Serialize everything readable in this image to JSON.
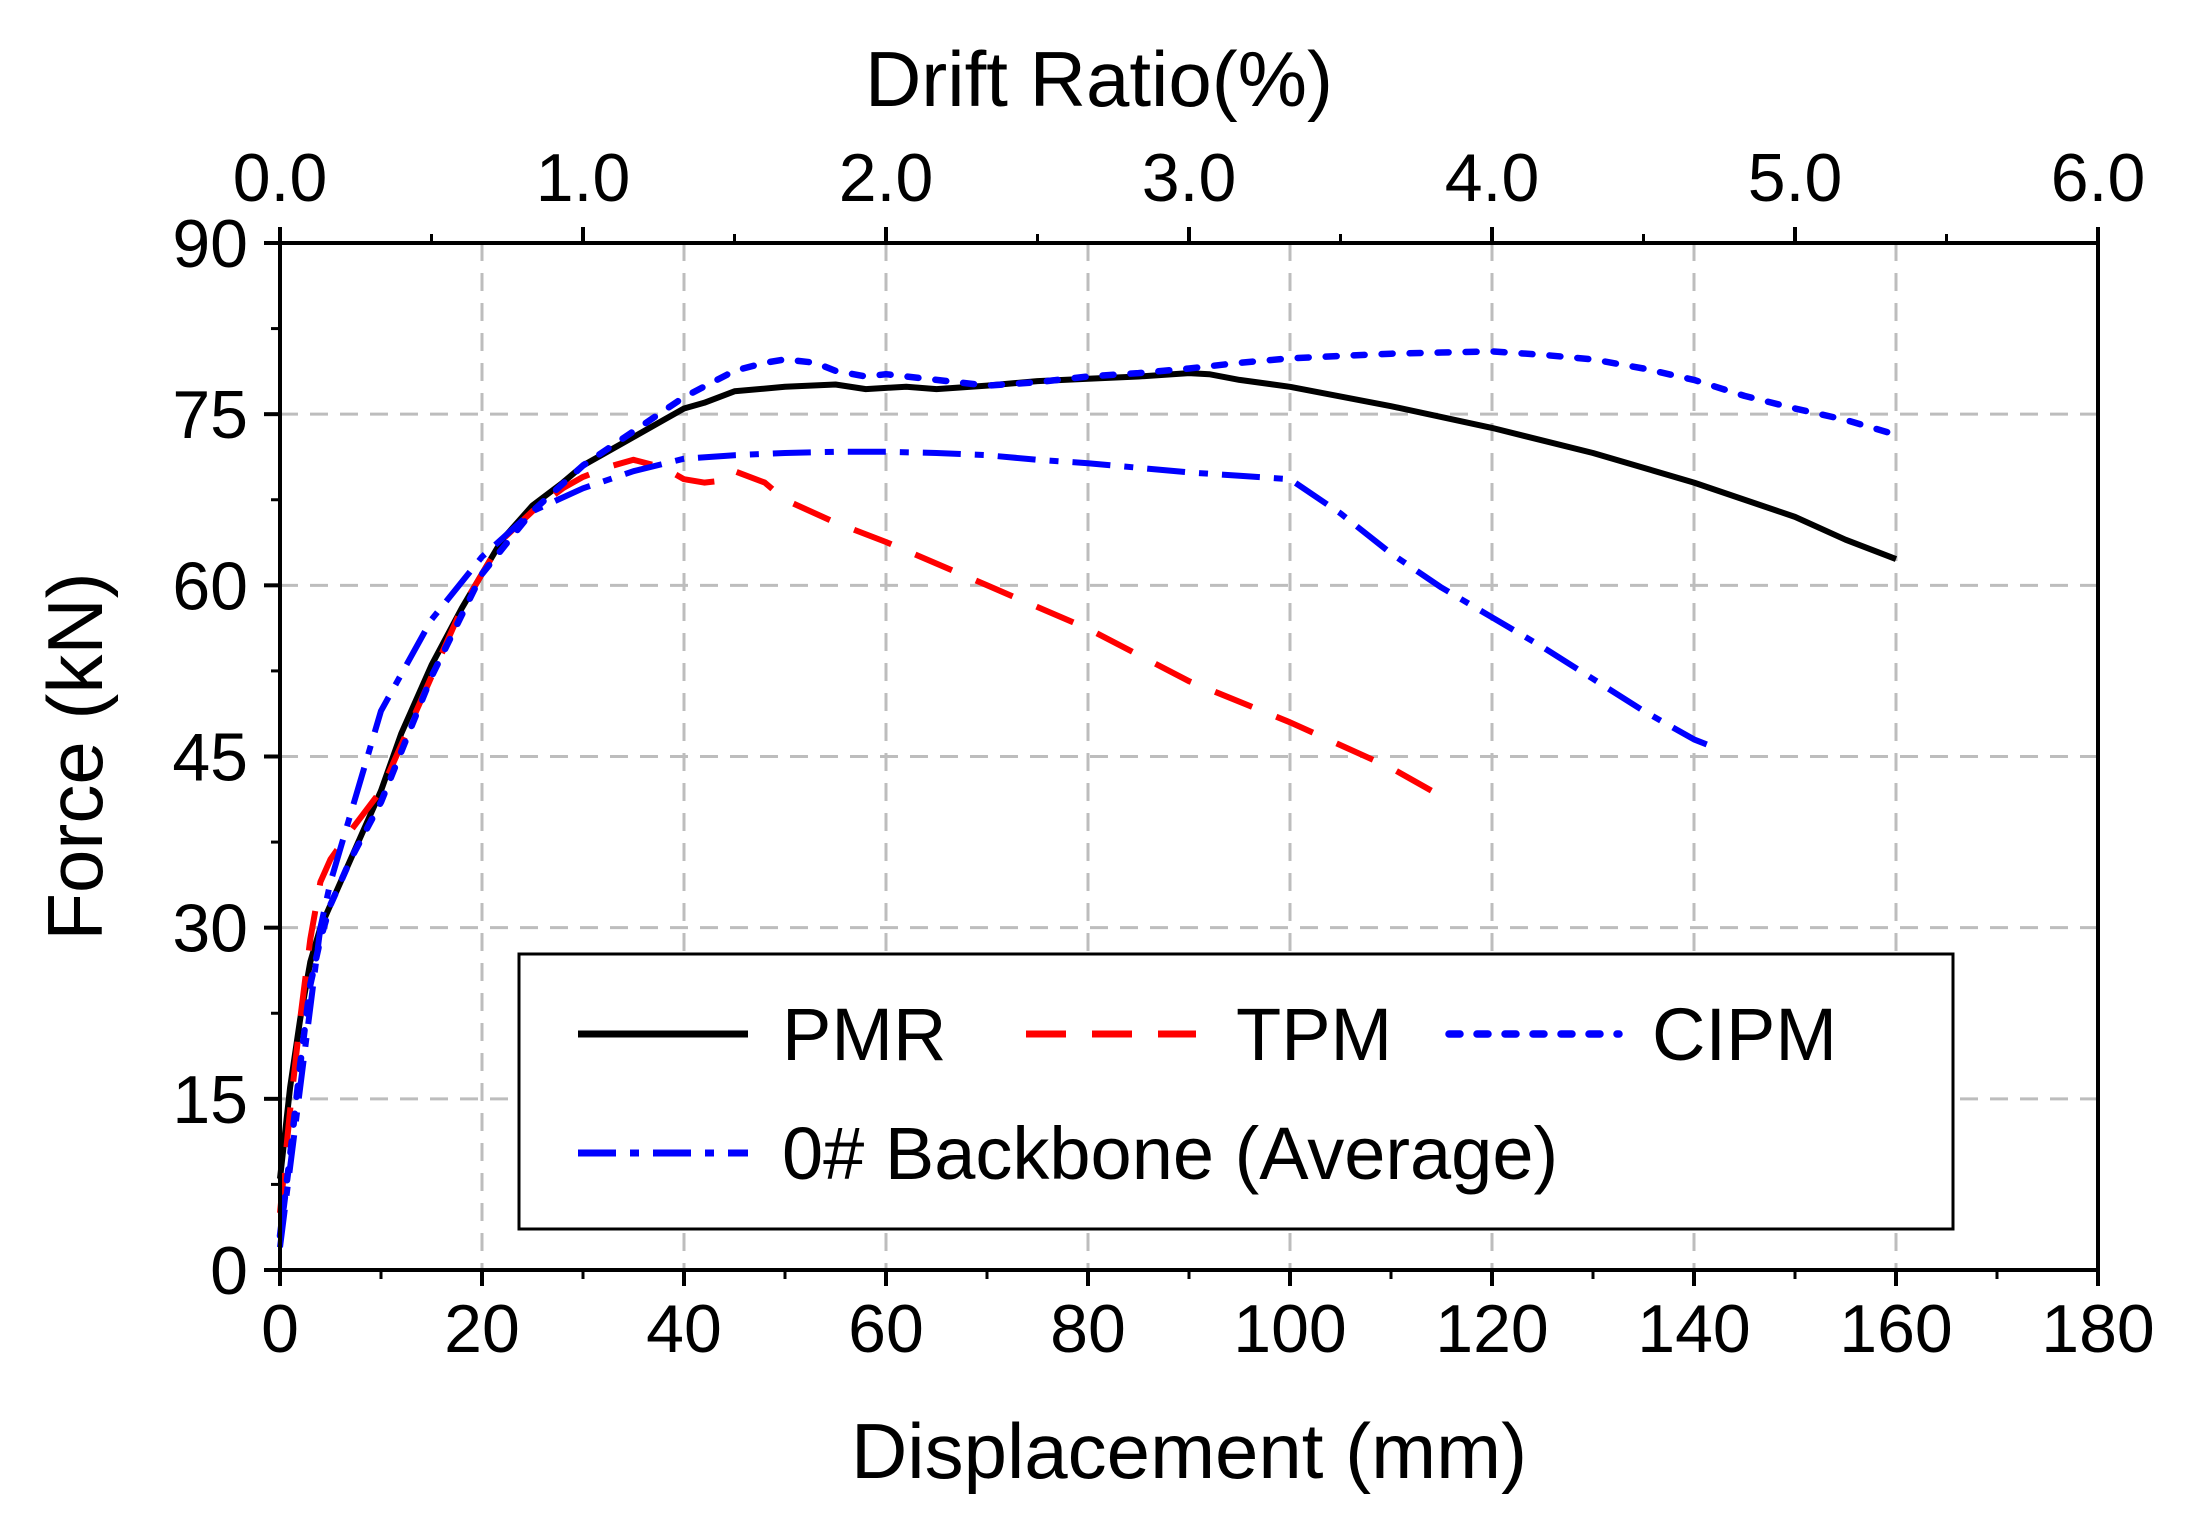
{
  "chart_data": {
    "type": "line",
    "title": "",
    "xlabel": "Displacement (mm)",
    "ylabel": "Force (kN)",
    "x2label": "Drift Ratio(%)",
    "xlim": [
      0,
      180
    ],
    "ylim": [
      0,
      90
    ],
    "x2lim": [
      0.0,
      6.0
    ],
    "xticks": [
      "0",
      "20",
      "40",
      "60",
      "80",
      "100",
      "120",
      "140",
      "160",
      "180"
    ],
    "yticks": [
      "0",
      "15",
      "30",
      "45",
      "60",
      "75",
      "90"
    ],
    "x2ticks": [
      "0.0",
      "1.0",
      "2.0",
      "3.0",
      "4.0",
      "5.0",
      "6.0"
    ],
    "grid": true,
    "legend_position": "bottom-center",
    "series": [
      {
        "name": "PMR",
        "style": "solid",
        "color": "#000000",
        "x": [
          0,
          1,
          2,
          3,
          4,
          5,
          7,
          10,
          12,
          15,
          18,
          20,
          22,
          25,
          28,
          30,
          32,
          35,
          38,
          40,
          42,
          45,
          50,
          55,
          58,
          60,
          62,
          65,
          70,
          75,
          80,
          85,
          90,
          92,
          95,
          100,
          110,
          120,
          130,
          140,
          150,
          155,
          160
        ],
        "values": [
          8,
          16,
          22,
          27,
          30,
          32,
          36,
          42,
          47,
          53,
          58,
          61,
          64,
          67,
          69,
          70.5,
          71.5,
          73,
          74.5,
          75.5,
          76,
          77,
          77.4,
          77.6,
          77.2,
          77.3,
          77.4,
          77.2,
          77.5,
          77.9,
          78.1,
          78.3,
          78.6,
          78.5,
          78.0,
          77.4,
          75.7,
          73.8,
          71.6,
          69.0,
          66.0,
          64.0,
          62.3
        ]
      },
      {
        "name": "TPM",
        "style": "dashed",
        "color": "#ff0000",
        "x": [
          0,
          1,
          2,
          3,
          4,
          5,
          7,
          10,
          12,
          15,
          18,
          20,
          22,
          25,
          28,
          30,
          33,
          35,
          38,
          40,
          42,
          44,
          45,
          48,
          50,
          55,
          60,
          70,
          80,
          90,
          100,
          110,
          116
        ],
        "values": [
          5,
          14,
          22,
          29,
          34,
          36,
          38.5,
          42,
          46,
          52,
          58,
          61,
          64,
          66.5,
          68.5,
          69.5,
          70.5,
          71,
          70.3,
          69.3,
          69.0,
          69.2,
          70.0,
          69.0,
          67.5,
          65.5,
          63.8,
          60.0,
          56.2,
          51.6,
          48.0,
          44.0,
          41.0
        ]
      },
      {
        "name": "CIPM",
        "style": "dotted",
        "color": "#0000ff",
        "x": [
          0,
          1,
          2,
          3,
          4,
          5,
          7,
          10,
          15,
          20,
          25,
          30,
          35,
          40,
          45,
          48,
          50,
          53,
          55,
          58,
          60,
          65,
          70,
          75,
          80,
          85,
          90,
          95,
          100,
          105,
          110,
          115,
          120,
          125,
          130,
          135,
          140,
          145,
          150,
          155,
          160
        ],
        "values": [
          3,
          10,
          18,
          25,
          29,
          32,
          36,
          41,
          52,
          61,
          66.5,
          70.5,
          73.5,
          76.5,
          78.8,
          79.5,
          79.8,
          79.5,
          78.8,
          78.3,
          78.5,
          78.0,
          77.5,
          77.8,
          78.3,
          78.6,
          79.0,
          79.5,
          79.9,
          80.1,
          80.3,
          80.4,
          80.5,
          80.2,
          79.8,
          79.0,
          78.0,
          76.6,
          75.5,
          74.5,
          73.2
        ]
      },
      {
        "name": "0# Backbone (Average)",
        "style": "dashdot",
        "color": "#0000ff",
        "x": [
          0,
          1,
          2,
          3,
          4,
          5,
          7,
          10,
          15,
          20,
          25,
          30,
          35,
          40,
          45,
          50,
          55,
          60,
          65,
          70,
          75,
          80,
          85,
          90,
          95,
          100,
          105,
          110,
          115,
          120,
          125,
          130,
          135,
          140,
          142
        ],
        "values": [
          2,
          9,
          16,
          23,
          30,
          34,
          40,
          49,
          57,
          62.5,
          66.5,
          68.5,
          70,
          71.1,
          71.4,
          71.6,
          71.7,
          71.7,
          71.6,
          71.4,
          71.0,
          70.7,
          70.3,
          69.9,
          69.6,
          69.3,
          66.3,
          62.8,
          59.8,
          57.2,
          54.6,
          51.8,
          49.0,
          46.5,
          45.8
        ]
      }
    ]
  }
}
